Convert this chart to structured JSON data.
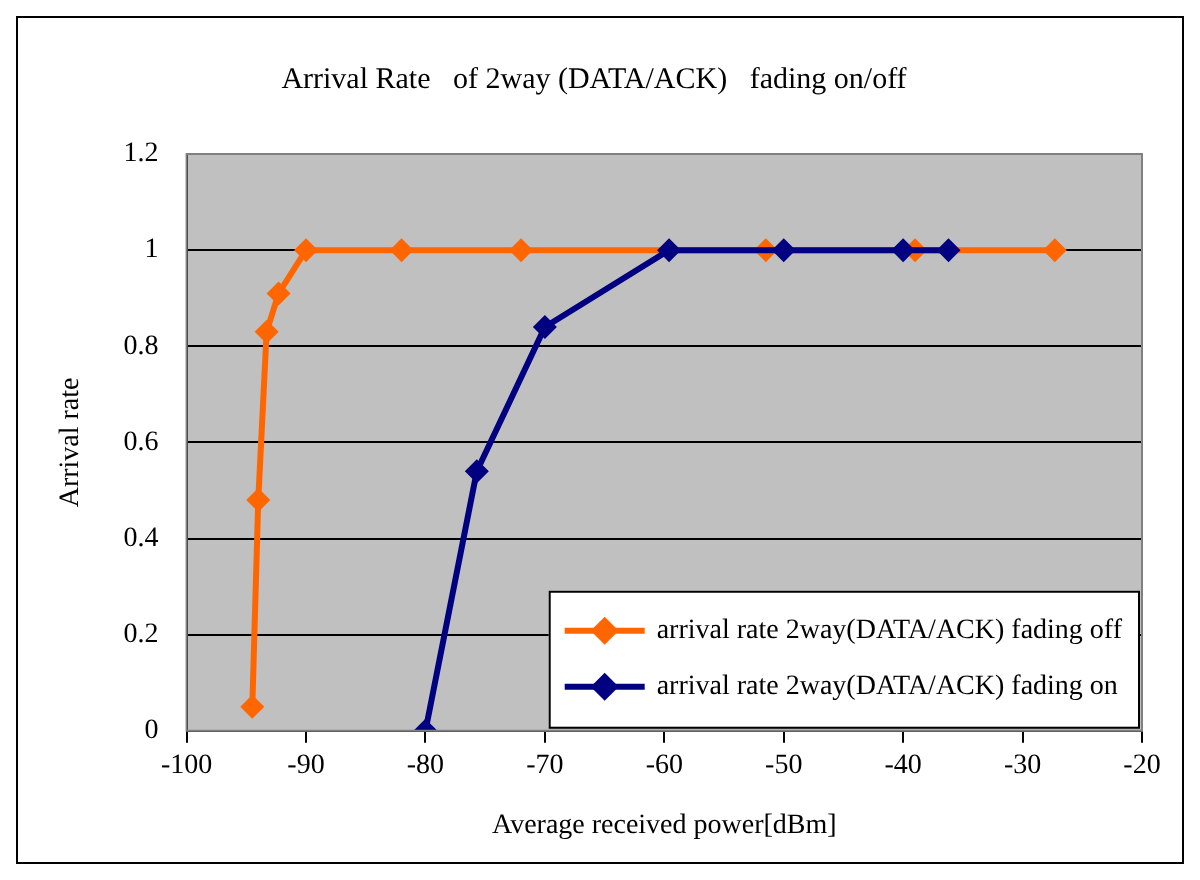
{
  "chart_data": {
    "type": "line",
    "title": "Arrival Rate   of 2way (DATA/ACK)   fading on/off",
    "xlabel": "Average received power[dBm]",
    "ylabel": "Arrival rate",
    "xlim": [
      -100,
      -20
    ],
    "xticks": [
      -100,
      -90,
      -80,
      -70,
      -60,
      -50,
      -40,
      -30,
      -20
    ],
    "ylim": [
      0,
      1.2
    ],
    "yticks": [
      0,
      0.2,
      0.4,
      0.6,
      0.8,
      1,
      1.2
    ],
    "grid": "y",
    "legend": "bottom right",
    "marker": "diamond",
    "line_style": "solid",
    "series": [
      {
        "name": "arrival rate 2way(DATA/ACK) fading off",
        "color": "#ff6600",
        "x": [
          -94.5,
          -94,
          -93.3,
          -92.3,
          -90,
          -82,
          -72,
          -51.5,
          -39,
          -27.3
        ],
        "values": [
          0.05,
          0.48,
          0.83,
          0.91,
          1,
          1,
          1,
          1,
          1,
          1
        ]
      },
      {
        "name": "arrival rate 2way(DATA/ACK) fading on",
        "color": "#000080",
        "x": [
          -80,
          -75.7,
          -70,
          -59.6,
          -50,
          -40,
          -36.2
        ],
        "values": [
          0,
          0.54,
          0.84,
          1,
          1,
          1,
          1
        ]
      }
    ]
  }
}
